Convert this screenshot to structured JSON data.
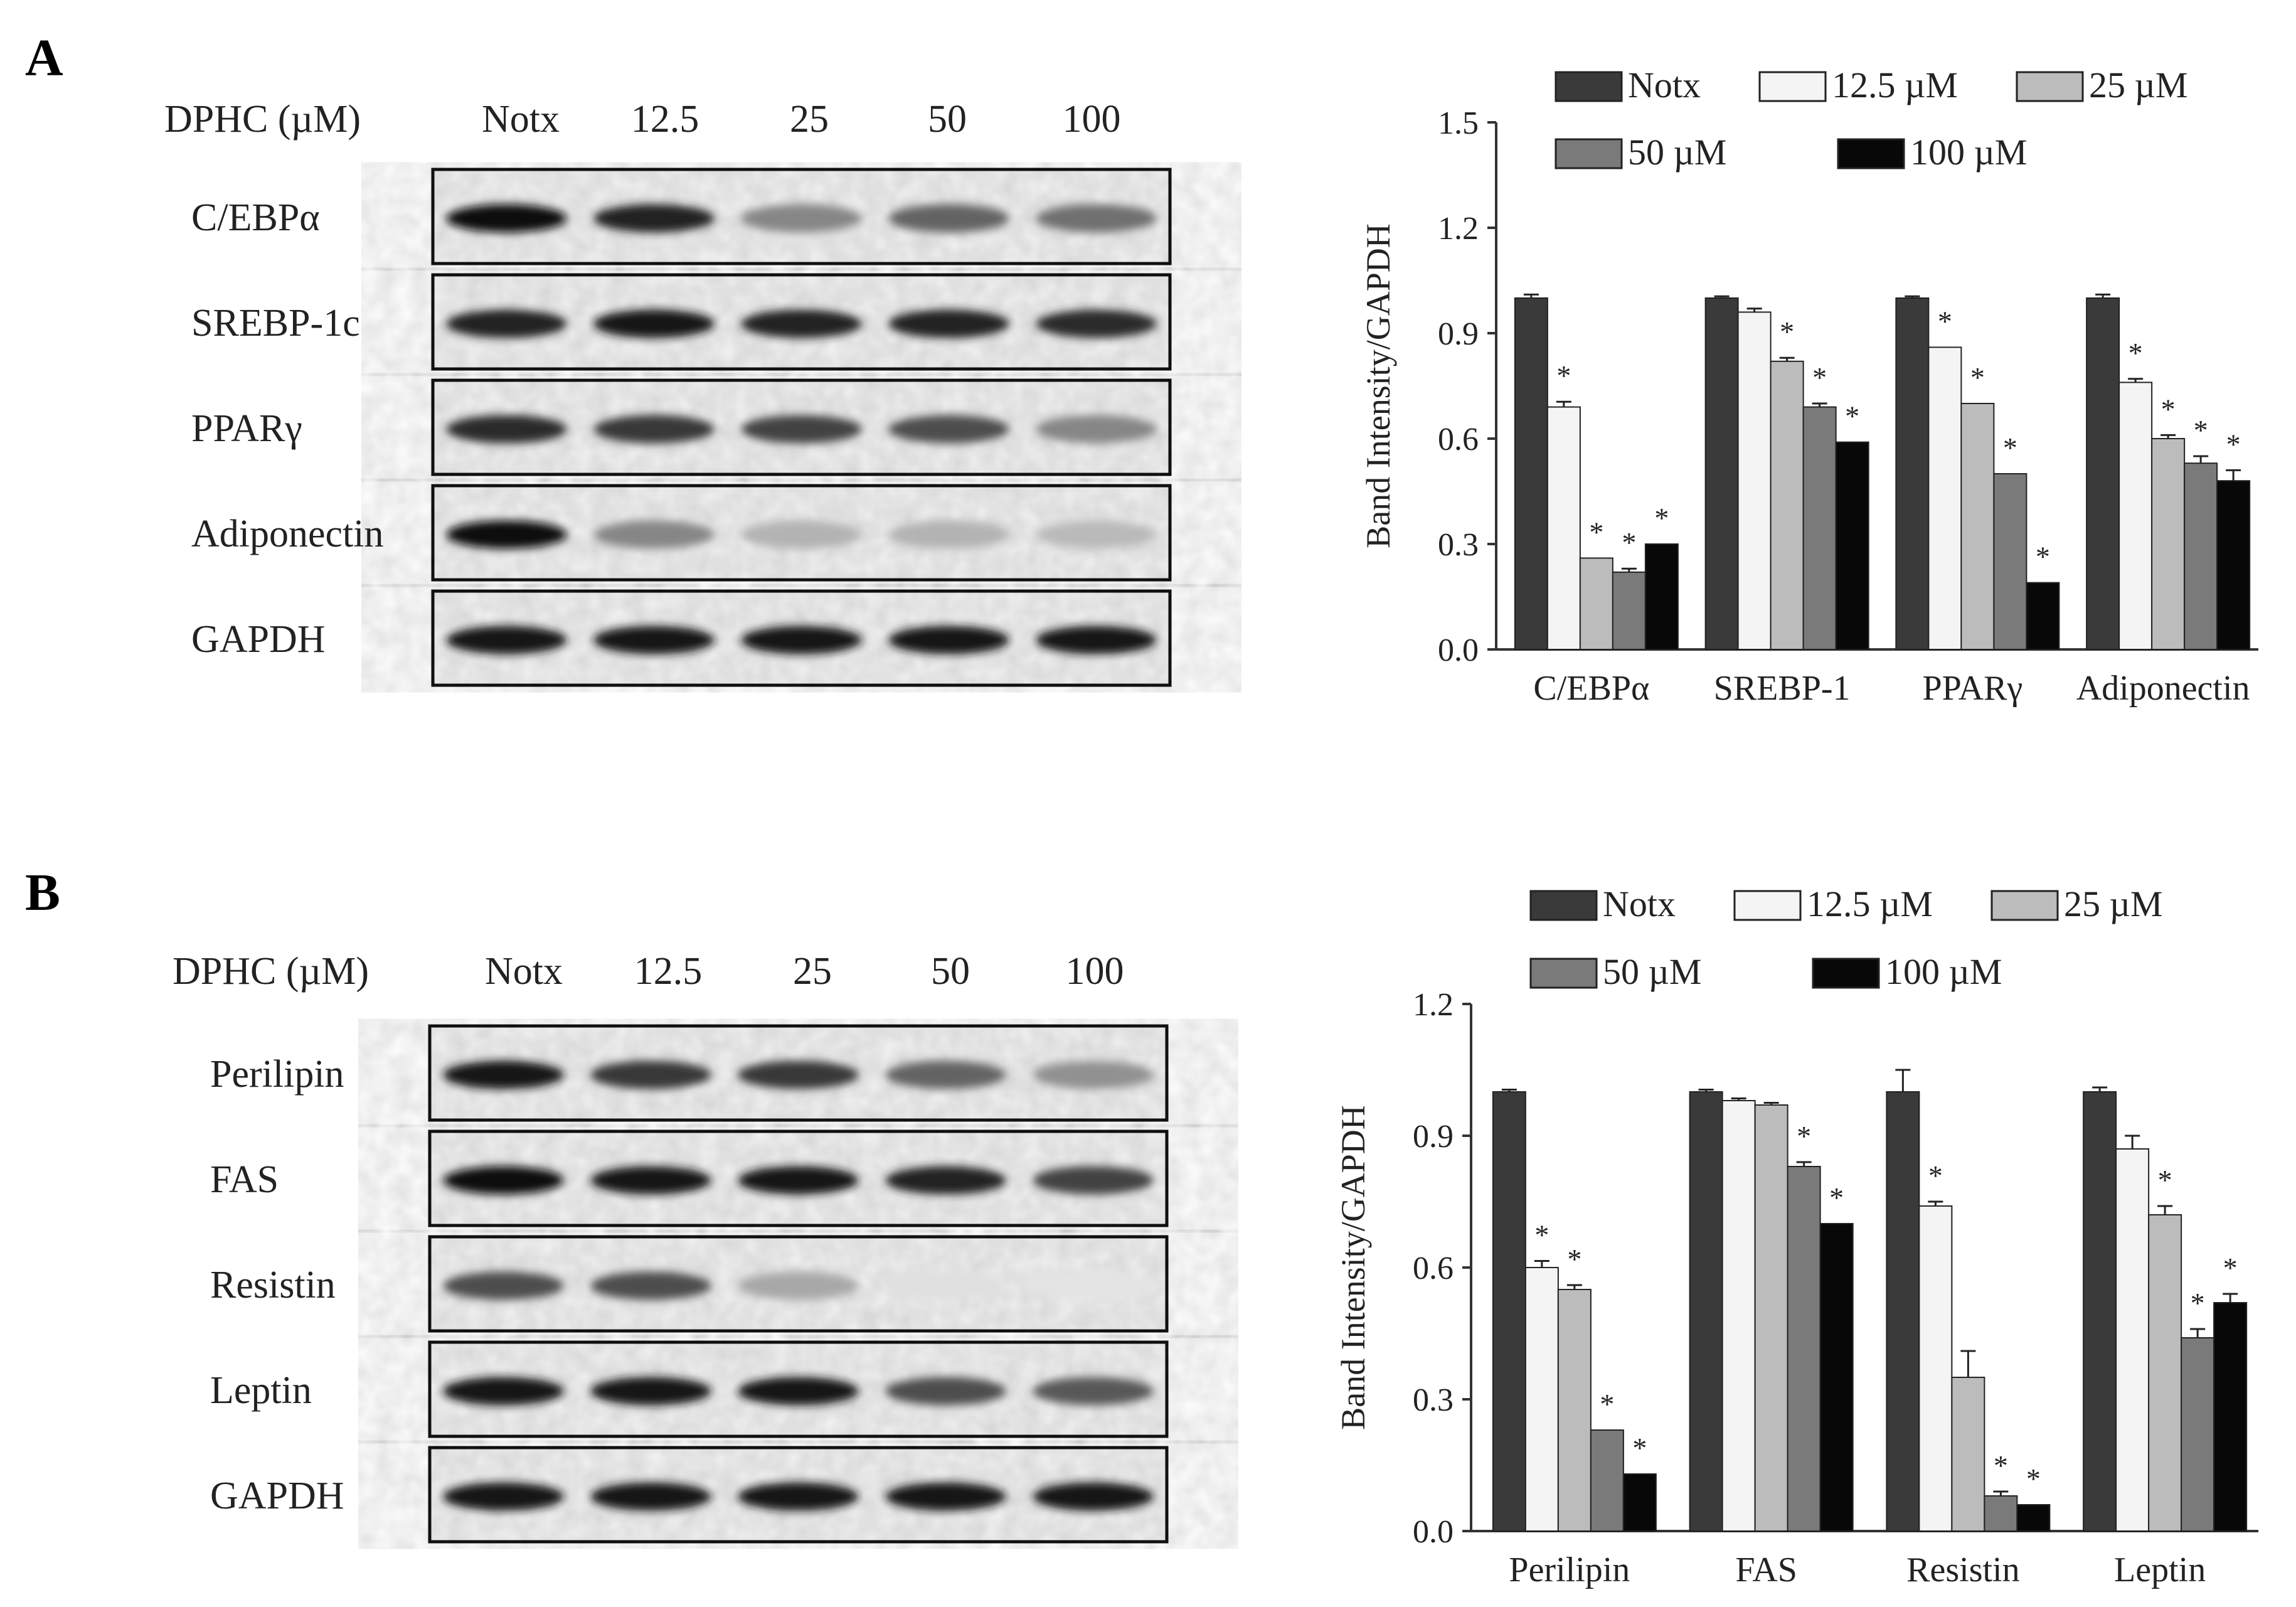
{
  "panels": [
    {
      "letter": "A",
      "blot": {
        "dose_label": "DPHC (µM)",
        "lanes": [
          "Notx",
          "12.5",
          "25",
          "50",
          "100"
        ],
        "rows": [
          {
            "label": "C/EBPα",
            "intensity": [
              1.0,
              0.9,
              0.45,
              0.6,
              0.55
            ]
          },
          {
            "label": "SREBP-1c",
            "intensity": [
              0.9,
              0.95,
              0.9,
              0.9,
              0.85
            ]
          },
          {
            "label": "PPARγ",
            "intensity": [
              0.85,
              0.8,
              0.75,
              0.7,
              0.45
            ]
          },
          {
            "label": "Adiponectin",
            "intensity": [
              1.0,
              0.45,
              0.25,
              0.25,
              0.22
            ]
          },
          {
            "label": "GAPDH",
            "intensity": [
              0.95,
              0.95,
              0.95,
              0.95,
              0.95
            ]
          }
        ]
      },
      "chart_data": {
        "type": "bar",
        "ylabel": "Band Intensity/GAPDH",
        "ylim": [
          0,
          1.5
        ],
        "yticks": [
          "0.0",
          "0.3",
          "0.6",
          "0.9",
          "1.2",
          "1.5"
        ],
        "categories": [
          "C/EBPα",
          "SREBP-1",
          "PPARγ",
          "Adiponectin"
        ],
        "legend_position": "top",
        "series": [
          {
            "name": "Notx",
            "color": "#3a3a3a",
            "values": [
              1.0,
              1.0,
              1.0,
              1.0
            ],
            "errors": [
              0.01,
              0.005,
              0.005,
              0.01
            ],
            "stars": [
              false,
              false,
              false,
              false
            ]
          },
          {
            "name": "12.5 µM",
            "color": "#f4f4f4",
            "values": [
              0.69,
              0.96,
              0.86,
              0.76
            ],
            "errors": [
              0.015,
              0.01,
              0.0,
              0.01
            ],
            "stars": [
              true,
              false,
              true,
              true
            ]
          },
          {
            "name": "25 µM",
            "color": "#bcbcbc",
            "values": [
              0.26,
              0.82,
              0.7,
              0.6
            ],
            "errors": [
              0.0,
              0.01,
              0.0,
              0.01
            ],
            "stars": [
              true,
              true,
              true,
              true
            ]
          },
          {
            "name": "50 µM",
            "color": "#7a7a7a",
            "values": [
              0.22,
              0.69,
              0.5,
              0.53
            ],
            "errors": [
              0.01,
              0.01,
              0.0,
              0.02
            ],
            "stars": [
              true,
              true,
              true,
              true
            ]
          },
          {
            "name": "100 µM",
            "color": "#080808",
            "values": [
              0.3,
              0.59,
              0.19,
              0.48
            ],
            "errors": [
              0.0,
              0.0,
              0.0,
              0.03
            ],
            "stars": [
              true,
              true,
              true,
              true
            ]
          }
        ]
      }
    },
    {
      "letter": "B",
      "blot": {
        "dose_label": "DPHC (µM)",
        "lanes": [
          "Notx",
          "12.5",
          "25",
          "50",
          "100"
        ],
        "rows": [
          {
            "label": "Perilipin",
            "intensity": [
              0.95,
              0.8,
              0.8,
              0.6,
              0.4
            ]
          },
          {
            "label": "FAS",
            "intensity": [
              1.0,
              0.95,
              0.95,
              0.9,
              0.75
            ]
          },
          {
            "label": "Resistin",
            "intensity": [
              0.7,
              0.7,
              0.3,
              0.05,
              0.03
            ]
          },
          {
            "label": "Leptin",
            "intensity": [
              0.95,
              0.95,
              0.95,
              0.7,
              0.65
            ]
          },
          {
            "label": "GAPDH",
            "intensity": [
              0.95,
              0.95,
              0.95,
              0.95,
              0.95
            ]
          }
        ]
      },
      "chart_data": {
        "type": "bar",
        "ylabel": "Band Intensity/GAPDH",
        "ylim": [
          0,
          1.2
        ],
        "yticks": [
          "0.0",
          "0.3",
          "0.6",
          "0.9",
          "1.2"
        ],
        "categories": [
          "Perilipin",
          "FAS",
          "Resistin",
          "Leptin"
        ],
        "legend_position": "top",
        "series": [
          {
            "name": "Notx",
            "color": "#3a3a3a",
            "values": [
              1.0,
              1.0,
              1.0,
              1.0
            ],
            "errors": [
              0.005,
              0.005,
              0.05,
              0.01
            ],
            "stars": [
              false,
              false,
              false,
              false
            ]
          },
          {
            "name": "12.5 µM",
            "color": "#f4f4f4",
            "values": [
              0.6,
              0.98,
              0.74,
              0.87
            ],
            "errors": [
              0.015,
              0.005,
              0.01,
              0.03
            ],
            "stars": [
              true,
              false,
              true,
              false
            ]
          },
          {
            "name": "25 µM",
            "color": "#bcbcbc",
            "values": [
              0.55,
              0.97,
              0.35,
              0.72
            ],
            "errors": [
              0.01,
              0.005,
              0.06,
              0.02
            ],
            "stars": [
              true,
              false,
              false,
              true
            ]
          },
          {
            "name": "50 µM",
            "color": "#7a7a7a",
            "values": [
              0.23,
              0.83,
              0.08,
              0.44
            ],
            "errors": [
              0.0,
              0.01,
              0.01,
              0.02
            ],
            "stars": [
              true,
              true,
              true,
              true
            ]
          },
          {
            "name": "100 µM",
            "color": "#080808",
            "values": [
              0.13,
              0.7,
              0.06,
              0.52
            ],
            "errors": [
              0.0,
              0.0,
              0.0,
              0.02
            ],
            "stars": [
              true,
              true,
              true,
              true
            ]
          }
        ]
      }
    }
  ]
}
